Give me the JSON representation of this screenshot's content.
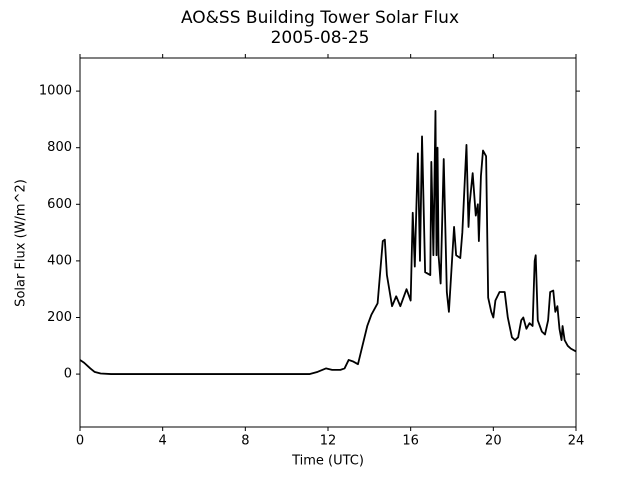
{
  "chart_data": {
    "type": "line",
    "title": "AO&SS Building Tower Solar Flux",
    "subtitle": "2005-08-25",
    "x_label": "Time (UTC)",
    "y_label": "Solar Flux (W/m^2)",
    "xlim": [
      0,
      24
    ],
    "xticks": [
      0,
      4,
      8,
      12,
      16,
      20,
      24
    ],
    "ylim": [
      -187,
      1117
    ],
    "yticks": [
      0,
      200,
      400,
      600,
      800,
      1000
    ],
    "series": [
      {
        "name": "Solar Flux",
        "color": "#000000",
        "x": [
          0,
          0.2,
          0.5,
          0.7,
          1.0,
          1.5,
          2,
          4,
          6,
          8,
          10,
          11.1,
          11.5,
          11.9,
          12.2,
          12.6,
          12.8,
          13.0,
          13.2,
          13.45,
          13.6,
          13.9,
          14.1,
          14.4,
          14.65,
          14.75,
          14.85,
          15.1,
          15.3,
          15.5,
          15.8,
          16.0,
          16.1,
          16.2,
          16.25,
          16.35,
          16.45,
          16.55,
          16.7,
          16.95,
          17.0,
          17.1,
          17.2,
          17.25,
          17.3,
          17.35,
          17.45,
          17.6,
          17.75,
          17.85,
          18.1,
          18.2,
          18.4,
          18.5,
          18.7,
          18.8,
          18.85,
          19.0,
          19.15,
          19.25,
          19.3,
          19.4,
          19.5,
          19.65,
          19.75,
          19.9,
          20.0,
          20.1,
          20.3,
          20.55,
          20.7,
          20.9,
          21.05,
          21.2,
          21.35,
          21.45,
          21.6,
          21.75,
          21.9,
          22.0,
          22.05,
          22.15,
          22.35,
          22.5,
          22.65,
          22.75,
          22.9,
          23.0,
          23.1,
          23.2,
          23.3,
          23.35,
          23.45,
          23.6,
          23.75,
          24.0
        ],
        "values": [
          50,
          40,
          20,
          8,
          2,
          0,
          0,
          0,
          0,
          0,
          0,
          0,
          8,
          20,
          15,
          15,
          20,
          50,
          45,
          35,
          80,
          170,
          210,
          250,
          470,
          475,
          350,
          240,
          275,
          240,
          300,
          260,
          570,
          380,
          520,
          780,
          400,
          840,
          360,
          350,
          750,
          420,
          930,
          420,
          800,
          420,
          320,
          760,
          290,
          220,
          520,
          420,
          410,
          500,
          810,
          520,
          600,
          710,
          560,
          600,
          470,
          700,
          790,
          770,
          270,
          220,
          200,
          260,
          290,
          290,
          200,
          130,
          120,
          130,
          190,
          200,
          160,
          180,
          170,
          400,
          420,
          190,
          150,
          140,
          190,
          290,
          295,
          220,
          240,
          160,
          120,
          170,
          120,
          100,
          90,
          80
        ]
      }
    ]
  }
}
